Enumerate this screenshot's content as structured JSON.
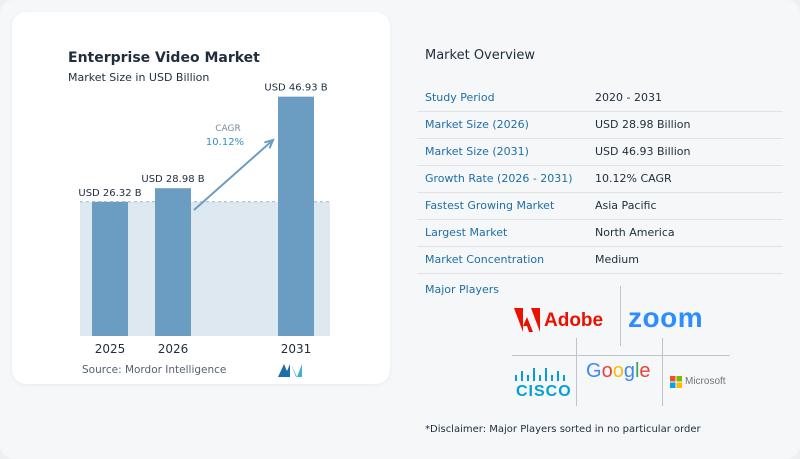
{
  "chart_data": {
    "type": "bar",
    "title": "Enterprise Video Market",
    "subtitle": "Market Size in USD Billion",
    "categories": [
      "2025",
      "2026",
      "2031"
    ],
    "values": [
      26.32,
      28.98,
      46.93
    ],
    "value_labels": [
      "USD 26.32 B",
      "USD 28.98 B",
      "USD 46.93 B"
    ],
    "cagr_label": "CAGR",
    "cagr_value": "10.12%",
    "ylim": [
      0,
      50
    ],
    "grid": false,
    "colors": {
      "bar": "#6b9cc2",
      "reference_band": "#dde8f0",
      "arrow": "#6b9cc2"
    }
  },
  "source": "Source:  Mordor Intelligence",
  "overview": {
    "title": "Market Overview",
    "rows": [
      {
        "key": "Study Period",
        "value": "2020 - 2031"
      },
      {
        "key": "Market Size (2026)",
        "value": "USD 28.98 Billion"
      },
      {
        "key": "Market Size (2031)",
        "value": "USD 46.93 Billion"
      },
      {
        "key": "Growth Rate (2026 - 2031)",
        "value": "10.12% CAGR"
      },
      {
        "key": "Fastest Growing Market",
        "value": "Asia Pacific"
      },
      {
        "key": "Largest Market",
        "value": "North America"
      },
      {
        "key": "Market Concentration",
        "value": "Medium"
      }
    ]
  },
  "players": {
    "title": "Major Players",
    "logos": [
      "Adobe",
      "zoom",
      "CISCO",
      "Google",
      "Microsoft"
    ]
  },
  "disclaimer": "*Disclaimer: Major Players sorted in no particular order"
}
